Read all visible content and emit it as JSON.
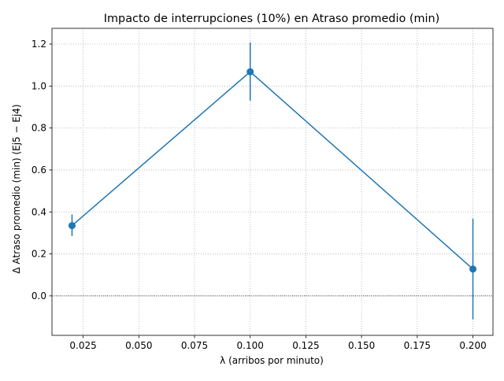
{
  "chart_data": {
    "type": "line",
    "title": "Impacto de interrupciones (10%) en Atraso promedio (min)",
    "xlabel": "λ (arribos por minuto)",
    "ylabel": "Δ Atraso promedio (min)  (Ej5 − Ej4)",
    "xlim": [
      0.011,
      0.209
    ],
    "ylim": [
      -0.188,
      1.275
    ],
    "x_ticks": [
      0.025,
      0.05,
      0.075,
      0.1,
      0.125,
      0.15,
      0.175,
      0.2
    ],
    "x_tick_labels": [
      "0.025",
      "0.050",
      "0.075",
      "0.100",
      "0.125",
      "0.150",
      "0.175",
      "0.200"
    ],
    "y_ticks": [
      0.0,
      0.2,
      0.4,
      0.6,
      0.8,
      1.0,
      1.2
    ],
    "y_tick_labels": [
      "0.0",
      "0.2",
      "0.4",
      "0.6",
      "0.8",
      "1.0",
      "1.2"
    ],
    "grid": true,
    "reference_line_y": 0.0,
    "series": [
      {
        "color": "#1f77b4",
        "points": [
          {
            "x": 0.02,
            "y": 0.335,
            "err_low": 0.285,
            "err_high": 0.388
          },
          {
            "x": 0.1,
            "y": 1.068,
            "err_low": 0.93,
            "err_high": 1.208
          },
          {
            "x": 0.2,
            "y": 0.128,
            "err_low": -0.112,
            "err_high": 0.368
          }
        ]
      }
    ]
  }
}
